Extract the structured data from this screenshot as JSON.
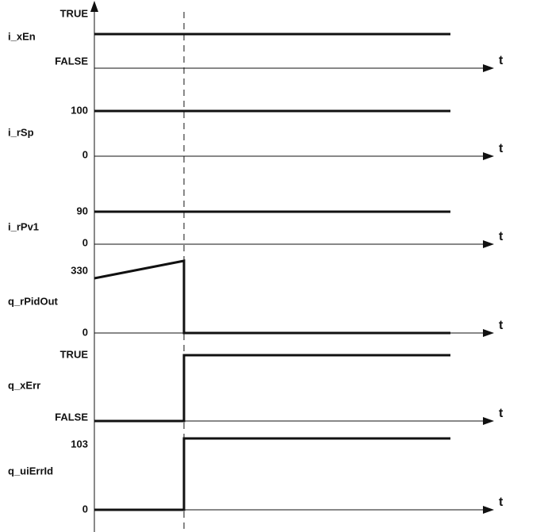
{
  "time_label": "t",
  "signals": [
    {
      "name": "i_xEn",
      "high": "TRUE",
      "low": "FALSE"
    },
    {
      "name": "i_rSp",
      "high": "100",
      "low": "0"
    },
    {
      "name": "i_rPv1",
      "high": "90",
      "low": "0"
    },
    {
      "name": "q_rPidOut",
      "high": "330",
      "low": "0"
    },
    {
      "name": "q_xErr",
      "high": "TRUE",
      "low": "FALSE"
    },
    {
      "name": "q_uiErrId",
      "high": "103",
      "low": "0"
    }
  ]
}
